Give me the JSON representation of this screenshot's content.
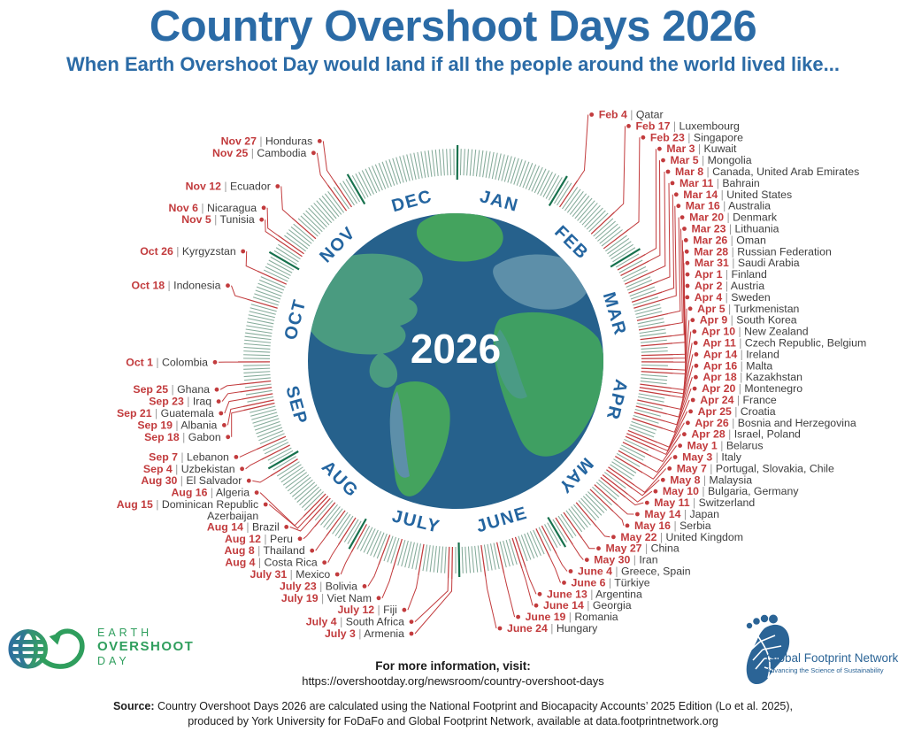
{
  "title": "Country Overshoot Days 2026",
  "subtitle": "When Earth Overshoot Day would land if all the people around the world lived like...",
  "center_year": "2026",
  "months": [
    "JAN",
    "FEB",
    "MAR",
    "APR",
    "MAY",
    "JUNE",
    "JULY",
    "AUG",
    "SEP",
    "OCT",
    "NOV",
    "DEC"
  ],
  "chart_data": {
    "type": "radial-calendar",
    "title": "Country Overshoot Days 2026",
    "entries": [
      {
        "date": "Feb 4",
        "countries": "Qatar"
      },
      {
        "date": "Feb 17",
        "countries": "Luxembourg"
      },
      {
        "date": "Feb 23",
        "countries": "Singapore"
      },
      {
        "date": "Mar 3",
        "countries": "Kuwait"
      },
      {
        "date": "Mar 5",
        "countries": "Mongolia"
      },
      {
        "date": "Mar 8",
        "countries": "Canada, United Arab Emirates"
      },
      {
        "date": "Mar 11",
        "countries": "Bahrain"
      },
      {
        "date": "Mar 14",
        "countries": "United States"
      },
      {
        "date": "Mar 16",
        "countries": "Australia"
      },
      {
        "date": "Mar 20",
        "countries": "Denmark"
      },
      {
        "date": "Mar 23",
        "countries": "Lithuania"
      },
      {
        "date": "Mar 26",
        "countries": "Oman"
      },
      {
        "date": "Mar 28",
        "countries": "Russian Federation"
      },
      {
        "date": "Mar 31",
        "countries": "Saudi Arabia"
      },
      {
        "date": "Apr 1",
        "countries": "Finland"
      },
      {
        "date": "Apr 2",
        "countries": "Austria"
      },
      {
        "date": "Apr 4",
        "countries": "Sweden"
      },
      {
        "date": "Apr 5",
        "countries": "Turkmenistan"
      },
      {
        "date": "Apr 9",
        "countries": "South Korea"
      },
      {
        "date": "Apr 10",
        "countries": "New Zealand"
      },
      {
        "date": "Apr 11",
        "countries": "Czech Republic, Belgium"
      },
      {
        "date": "Apr 14",
        "countries": "Ireland"
      },
      {
        "date": "Apr 16",
        "countries": "Malta"
      },
      {
        "date": "Apr 18",
        "countries": "Kazakhstan"
      },
      {
        "date": "Apr 20",
        "countries": "Montenegro"
      },
      {
        "date": "Apr 24",
        "countries": "France"
      },
      {
        "date": "Apr 25",
        "countries": "Croatia"
      },
      {
        "date": "Apr 26",
        "countries": "Bosnia and Herzegovina"
      },
      {
        "date": "Apr 28",
        "countries": "Israel, Poland"
      },
      {
        "date": "May 1",
        "countries": "Belarus"
      },
      {
        "date": "May 3",
        "countries": "Italy"
      },
      {
        "date": "May 7",
        "countries": "Portugal, Slovakia, Chile"
      },
      {
        "date": "May 8",
        "countries": "Malaysia"
      },
      {
        "date": "May 10",
        "countries": "Bulgaria, Germany"
      },
      {
        "date": "May 11",
        "countries": "Switzerland"
      },
      {
        "date": "May 14",
        "countries": "Japan"
      },
      {
        "date": "May 16",
        "countries": "Serbia"
      },
      {
        "date": "May 22",
        "countries": "United Kingdom"
      },
      {
        "date": "May 27",
        "countries": "China"
      },
      {
        "date": "May 30",
        "countries": "Iran"
      },
      {
        "date": "June 4",
        "countries": "Greece, Spain"
      },
      {
        "date": "June 6",
        "countries": "Türkiye"
      },
      {
        "date": "June 13",
        "countries": "Argentina"
      },
      {
        "date": "June 14",
        "countries": "Georgia"
      },
      {
        "date": "June 19",
        "countries": "Romania"
      },
      {
        "date": "June 24",
        "countries": "Hungary"
      },
      {
        "date": "July 3",
        "countries": "Armenia"
      },
      {
        "date": "July 4",
        "countries": "South Africa"
      },
      {
        "date": "July 12",
        "countries": "Fiji"
      },
      {
        "date": "July 19",
        "countries": "Viet Nam"
      },
      {
        "date": "July 23",
        "countries": "Bolivia"
      },
      {
        "date": "July 31",
        "countries": "Mexico"
      },
      {
        "date": "Aug 4",
        "countries": "Costa Rica"
      },
      {
        "date": "Aug 8",
        "countries": "Thailand"
      },
      {
        "date": "Aug 12",
        "countries": "Peru"
      },
      {
        "date": "Aug 14",
        "countries": "Brazil"
      },
      {
        "date": "Aug 15",
        "countries": "Dominican Republic",
        "countries_line2": "Azerbaijan"
      },
      {
        "date": "Aug 16",
        "countries": "Algeria"
      },
      {
        "date": "Aug 30",
        "countries": "El Salvador"
      },
      {
        "date": "Sep 4",
        "countries": "Uzbekistan"
      },
      {
        "date": "Sep 7",
        "countries": "Lebanon"
      },
      {
        "date": "Sep 18",
        "countries": "Gabon"
      },
      {
        "date": "Sep 19",
        "countries": "Albania"
      },
      {
        "date": "Sep 21",
        "countries": "Guatemala"
      },
      {
        "date": "Sep 23",
        "countries": "Iraq"
      },
      {
        "date": "Sep 25",
        "countries": "Ghana"
      },
      {
        "date": "Oct 1",
        "countries": "Colombia"
      },
      {
        "date": "Oct 18",
        "countries": "Indonesia"
      },
      {
        "date": "Oct 26",
        "countries": "Kyrgyzstan"
      },
      {
        "date": "Nov 5",
        "countries": "Tunisia"
      },
      {
        "date": "Nov 6",
        "countries": "Nicaragua"
      },
      {
        "date": "Nov 12",
        "countries": "Ecuador"
      },
      {
        "date": "Nov 25",
        "countries": "Cambodia"
      },
      {
        "date": "Nov 27",
        "countries": "Honduras"
      }
    ]
  },
  "footer": {
    "info_heading": "For more information, visit:",
    "info_url": "https://overshootday.org/newsroom/country-overshoot-days",
    "source_label": "Source:",
    "source_line1": "Country Overshoot Days 2026 are calculated using the National Footprint and Biocapacity Accounts’ 2025 Edition (Lo et al. 2025),",
    "source_line2": "produced by York University for FoDaFo and Global Footprint Network, available at data.footprintnetwork.org"
  },
  "logos": {
    "eod_line1": "EARTH",
    "eod_line2": "OVERSHOOT",
    "eod_line3": "DAY",
    "gfn_name": "Global Footprint Network",
    "gfn_tagline": "Advancing the Science of Sustainability"
  },
  "palette": {
    "title_blue": "#2b6ba6",
    "month_blue": "#2465a0",
    "date_red": "#c23b3d",
    "separator_gray": "#9a9a9a",
    "country_text": "#3e3e3e",
    "ocean_blue": "#26618c",
    "land_green": "#44a35e",
    "land_teal": "#4a9b80",
    "land_lightblue": "#5d8fa9",
    "tick_sage": "#85ab9a",
    "tick_month_green": "#17714d",
    "eod_green": "#2f9e5d",
    "gfn_blue": "#2b6496"
  }
}
